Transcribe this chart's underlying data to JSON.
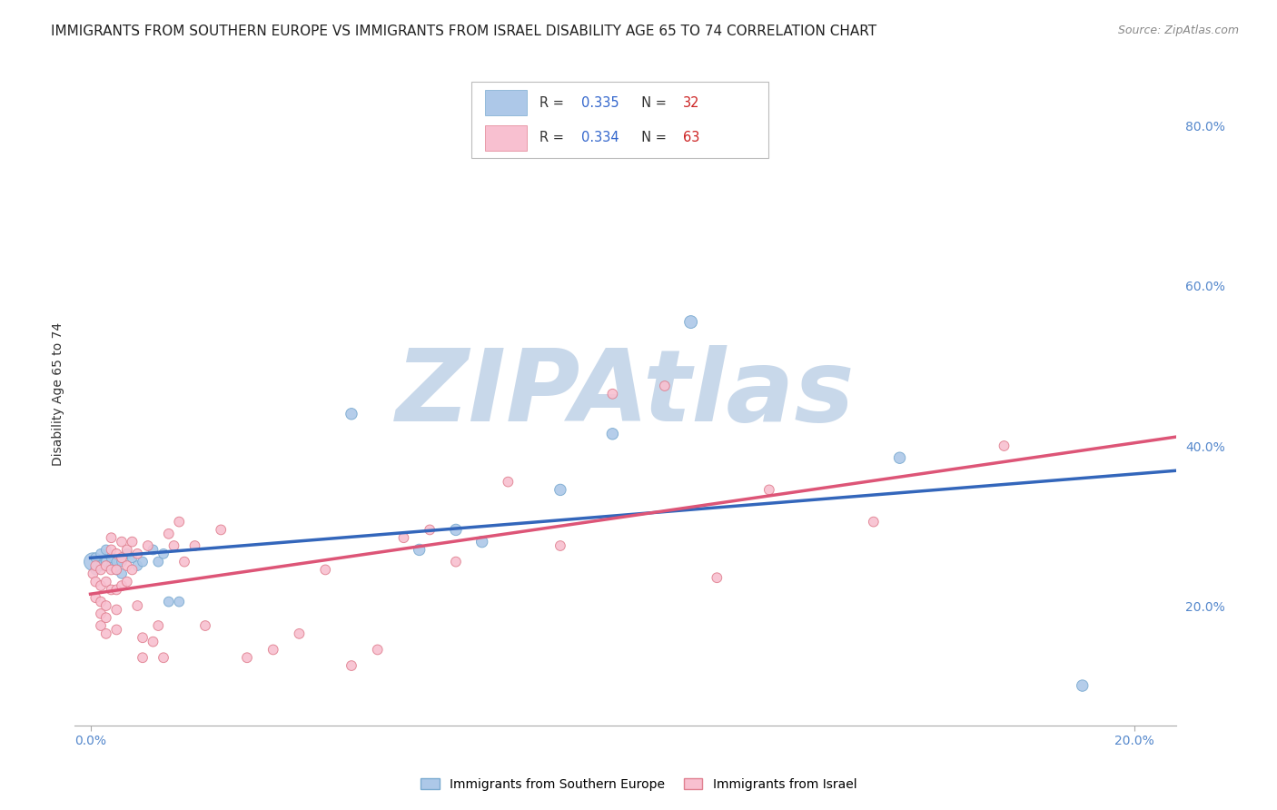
{
  "title": "IMMIGRANTS FROM SOUTHERN EUROPE VS IMMIGRANTS FROM ISRAEL DISABILITY AGE 65 TO 74 CORRELATION CHART",
  "source": "Source: ZipAtlas.com",
  "ylabel": "Disability Age 65 to 74",
  "series": [
    {
      "name": "Immigrants from Southern Europe",
      "color": "#adc8e8",
      "edge_color": "#7aaad0",
      "line_color": "#3366bb",
      "R": 0.335,
      "N": 32,
      "x": [
        0.0005,
        0.001,
        0.001,
        0.0015,
        0.002,
        0.002,
        0.003,
        0.003,
        0.004,
        0.004,
        0.005,
        0.005,
        0.006,
        0.006,
        0.007,
        0.008,
        0.009,
        0.01,
        0.012,
        0.013,
        0.014,
        0.015,
        0.017,
        0.05,
        0.063,
        0.07,
        0.075,
        0.09,
        0.1,
        0.115,
        0.155,
        0.19
      ],
      "y": [
        0.255,
        0.245,
        0.26,
        0.25,
        0.265,
        0.25,
        0.255,
        0.27,
        0.25,
        0.26,
        0.245,
        0.255,
        0.255,
        0.24,
        0.265,
        0.26,
        0.25,
        0.255,
        0.27,
        0.255,
        0.265,
        0.205,
        0.205,
        0.44,
        0.27,
        0.295,
        0.28,
        0.345,
        0.415,
        0.555,
        0.385,
        0.1
      ],
      "size": [
        200,
        60,
        60,
        60,
        60,
        60,
        60,
        60,
        60,
        60,
        60,
        60,
        60,
        60,
        60,
        60,
        60,
        60,
        60,
        60,
        60,
        60,
        60,
        80,
        80,
        80,
        80,
        80,
        80,
        100,
        80,
        80
      ]
    },
    {
      "name": "Immigrants from Israel",
      "color": "#f8c0d0",
      "edge_color": "#e08090",
      "line_color": "#dd5577",
      "R": 0.334,
      "N": 63,
      "x": [
        0.0005,
        0.001,
        0.001,
        0.001,
        0.002,
        0.002,
        0.002,
        0.002,
        0.002,
        0.003,
        0.003,
        0.003,
        0.003,
        0.003,
        0.004,
        0.004,
        0.004,
        0.004,
        0.005,
        0.005,
        0.005,
        0.005,
        0.005,
        0.006,
        0.006,
        0.006,
        0.007,
        0.007,
        0.007,
        0.008,
        0.008,
        0.009,
        0.009,
        0.01,
        0.01,
        0.011,
        0.012,
        0.013,
        0.014,
        0.015,
        0.016,
        0.017,
        0.018,
        0.02,
        0.022,
        0.025,
        0.03,
        0.035,
        0.04,
        0.045,
        0.05,
        0.055,
        0.06,
        0.065,
        0.07,
        0.08,
        0.09,
        0.1,
        0.11,
        0.12,
        0.13,
        0.15,
        0.175
      ],
      "y": [
        0.24,
        0.25,
        0.23,
        0.21,
        0.245,
        0.225,
        0.205,
        0.19,
        0.175,
        0.25,
        0.23,
        0.2,
        0.185,
        0.165,
        0.285,
        0.27,
        0.245,
        0.22,
        0.265,
        0.245,
        0.22,
        0.195,
        0.17,
        0.28,
        0.26,
        0.225,
        0.27,
        0.25,
        0.23,
        0.28,
        0.245,
        0.265,
        0.2,
        0.135,
        0.16,
        0.275,
        0.155,
        0.175,
        0.135,
        0.29,
        0.275,
        0.305,
        0.255,
        0.275,
        0.175,
        0.295,
        0.135,
        0.145,
        0.165,
        0.245,
        0.125,
        0.145,
        0.285,
        0.295,
        0.255,
        0.355,
        0.275,
        0.465,
        0.475,
        0.235,
        0.345,
        0.305,
        0.4
      ],
      "size": [
        60,
        60,
        60,
        60,
        60,
        60,
        60,
        60,
        60,
        60,
        60,
        60,
        60,
        60,
        60,
        60,
        60,
        60,
        60,
        60,
        60,
        60,
        60,
        60,
        60,
        60,
        60,
        60,
        60,
        60,
        60,
        60,
        60,
        60,
        60,
        60,
        60,
        60,
        60,
        60,
        60,
        60,
        60,
        60,
        60,
        60,
        60,
        60,
        60,
        60,
        60,
        60,
        60,
        60,
        60,
        60,
        60,
        60,
        60,
        60,
        60,
        60,
        60
      ]
    }
  ],
  "xlim": [
    -0.003,
    0.208
  ],
  "ylim": [
    0.05,
    0.88
  ],
  "right_yticks": [
    0.2,
    0.4,
    0.6,
    0.8
  ],
  "right_yticklabels": [
    "20.0%",
    "40.0%",
    "60.0%",
    "80.0%"
  ],
  "xtick_positions": [
    0.0,
    0.2
  ],
  "xtick_labels": [
    "0.0%",
    "20.0%"
  ],
  "background_color": "#ffffff",
  "grid_color": "#dddddd",
  "watermark": "ZIPAtlas",
  "watermark_color": "#c8d8ea",
  "title_fontsize": 11,
  "axis_label_fontsize": 10,
  "tick_label_color": "#5588cc",
  "legend_text_color": "#333333",
  "legend_value_color": "#3366cc",
  "legend_N_color": "#cc2222"
}
